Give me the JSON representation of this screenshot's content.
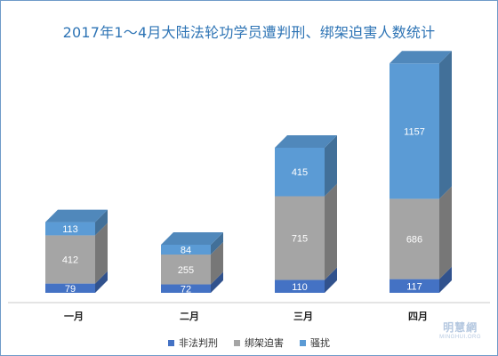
{
  "chart_data": {
    "type": "bar",
    "stacked": true,
    "style": "3d-column",
    "title": "2017年1～4月大陆法轮功学员遭判刑、绑架迫害人数统计",
    "categories": [
      "一月",
      "二月",
      "三月",
      "四月"
    ],
    "series": [
      {
        "name": "非法判刑",
        "values": [
          79,
          72,
          110,
          117
        ],
        "color": "#4472c4"
      },
      {
        "name": "绑架迫害",
        "values": [
          412,
          255,
          715,
          686
        ],
        "color": "#a5a5a5"
      },
      {
        "name": "骚扰",
        "values": [
          113,
          84,
          415,
          1157
        ],
        "color": "#5b9bd5"
      }
    ],
    "legend_position": "bottom",
    "grid": false
  },
  "watermark": {
    "cn": "明慧網",
    "en": "MINGHUI.ORG"
  }
}
